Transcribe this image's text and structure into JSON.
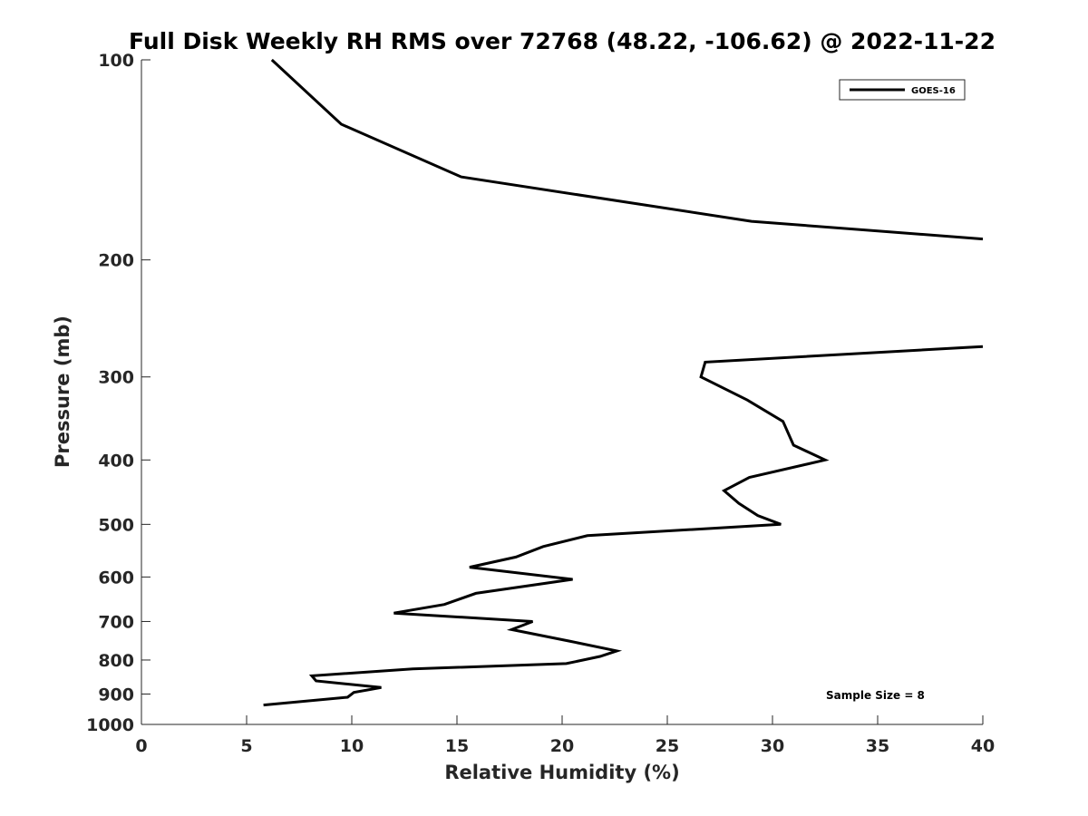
{
  "chart_data": {
    "type": "line",
    "title": "Full Disk Weekly RH RMS over 72768 (48.22, -106.62) @ 2022-11-22",
    "xlabel": "Relative Humidity (%)",
    "ylabel": "Pressure (mb)",
    "xlim": [
      0,
      40
    ],
    "ylim": [
      100,
      1000
    ],
    "y_scale": "log",
    "y_reversed": true,
    "x_ticks": [
      0,
      5,
      10,
      15,
      20,
      25,
      30,
      35,
      40
    ],
    "y_ticks": [
      100,
      200,
      300,
      400,
      500,
      600,
      700,
      800,
      900,
      1000
    ],
    "grid": false,
    "legend_position": "top-right",
    "series": [
      {
        "name": "GOES-16",
        "color": "#000000",
        "segments": [
          [
            {
              "x": 6.2,
              "y": 100
            },
            {
              "x": 9.5,
              "y": 125
            },
            {
              "x": 15.2,
              "y": 150
            },
            {
              "x": 29.0,
              "y": 175
            },
            {
              "x": 40.0,
              "y": 186
            }
          ],
          [
            {
              "x": 40.0,
              "y": 270
            },
            {
              "x": 26.8,
              "y": 285
            },
            {
              "x": 26.6,
              "y": 300
            },
            {
              "x": 28.8,
              "y": 325
            },
            {
              "x": 30.5,
              "y": 350
            },
            {
              "x": 31.0,
              "y": 380
            },
            {
              "x": 32.5,
              "y": 400
            },
            {
              "x": 28.9,
              "y": 425
            },
            {
              "x": 27.7,
              "y": 445
            },
            {
              "x": 28.4,
              "y": 465
            },
            {
              "x": 29.3,
              "y": 485
            },
            {
              "x": 30.4,
              "y": 500
            },
            {
              "x": 21.2,
              "y": 520
            },
            {
              "x": 19.1,
              "y": 540
            },
            {
              "x": 17.8,
              "y": 560
            },
            {
              "x": 15.6,
              "y": 580
            },
            {
              "x": 20.5,
              "y": 605
            },
            {
              "x": 15.9,
              "y": 635
            },
            {
              "x": 14.4,
              "y": 660
            },
            {
              "x": 12.0,
              "y": 680
            },
            {
              "x": 18.6,
              "y": 700
            },
            {
              "x": 17.6,
              "y": 720
            },
            {
              "x": 20.4,
              "y": 750
            },
            {
              "x": 22.6,
              "y": 775
            },
            {
              "x": 21.8,
              "y": 790
            },
            {
              "x": 20.2,
              "y": 810
            },
            {
              "x": 12.9,
              "y": 825
            },
            {
              "x": 8.1,
              "y": 845
            },
            {
              "x": 8.3,
              "y": 860
            },
            {
              "x": 11.4,
              "y": 880
            },
            {
              "x": 10.1,
              "y": 895
            },
            {
              "x": 9.8,
              "y": 910
            },
            {
              "x": 5.8,
              "y": 935
            }
          ]
        ]
      }
    ],
    "annotation": "Sample Size = 8"
  }
}
